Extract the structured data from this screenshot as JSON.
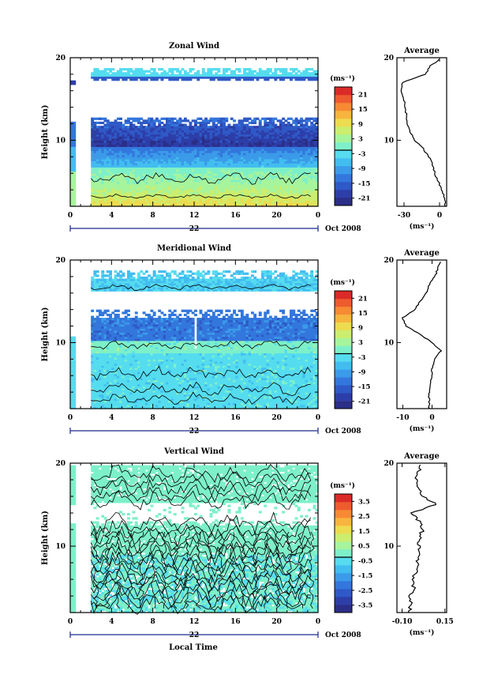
{
  "xlabel": "Local Time",
  "date_label": "Oct 2008",
  "day_label": "22",
  "colors": {
    "bar_colors": [
      "#2b2e86",
      "#2d3ea9",
      "#2f59c6",
      "#3377dd",
      "#3b9be9",
      "#42bdf0",
      "#55dcef",
      "#7df0c9",
      "#a6f49c",
      "#ccee6e",
      "#ecdc4e",
      "#f7b53d",
      "#f78a33",
      "#ef5b2e",
      "#dc2a28"
    ]
  },
  "chart_data": [
    {
      "type": "heatmap",
      "title": "Zonal Wind",
      "ylabel": "Height (km)",
      "unit": "(ms⁻¹)",
      "xlim": [
        0,
        24
      ],
      "ylim": [
        2,
        20
      ],
      "x_ticks": [
        "0",
        "4",
        "8",
        "12",
        "16",
        "20",
        "0"
      ],
      "y_ticks": [
        "10",
        "20"
      ],
      "colorbar_ticks": [
        "-21",
        "-15",
        "-9",
        "-3",
        "3",
        "9",
        "15",
        "21"
      ],
      "colorbar_range": [
        -24,
        24
      ],
      "average": {
        "title": "Average",
        "xlim": [
          -36,
          6
        ],
        "x_ticks": [
          "-30",
          "0"
        ],
        "xlabel": "(ms⁻¹)",
        "y_ticks": [
          "10",
          "20"
        ],
        "profile": [
          [
            5,
            2
          ],
          [
            4,
            3
          ],
          [
            2,
            4
          ],
          [
            -1,
            5
          ],
          [
            -4,
            6
          ],
          [
            -6,
            7
          ],
          [
            -9,
            8
          ],
          [
            -14,
            9
          ],
          [
            -21,
            10
          ],
          [
            -25,
            11
          ],
          [
            -27,
            12
          ],
          [
            -28,
            13
          ],
          [
            -29,
            14
          ],
          [
            -30,
            15
          ],
          [
            -33,
            16
          ],
          [
            -31,
            17
          ],
          [
            -12,
            18
          ],
          [
            -8,
            19
          ],
          [
            2,
            20
          ]
        ]
      }
    },
    {
      "type": "heatmap",
      "title": "Meridional Wind",
      "ylabel": "Height (km)",
      "unit": "(ms⁻¹)",
      "xlim": [
        0,
        24
      ],
      "ylim": [
        2,
        20
      ],
      "x_ticks": [
        "0",
        "4",
        "8",
        "12",
        "16",
        "20",
        "0"
      ],
      "y_ticks": [
        "10",
        "20"
      ],
      "colorbar_ticks": [
        "-21",
        "-15",
        "-9",
        "-3",
        "3",
        "9",
        "15",
        "21"
      ],
      "colorbar_range": [
        -24,
        24
      ],
      "average": {
        "title": "Average",
        "xlim": [
          -12,
          5
        ],
        "x_ticks": [
          "-10",
          "0"
        ],
        "xlabel": "(ms⁻¹)",
        "y_ticks": [
          "10",
          "20"
        ],
        "profile": [
          [
            -1,
            2
          ],
          [
            -1,
            3
          ],
          [
            -1,
            4
          ],
          [
            -0.5,
            5
          ],
          [
            0,
            6
          ],
          [
            0,
            7
          ],
          [
            1,
            8
          ],
          [
            3,
            9
          ],
          [
            0,
            10
          ],
          [
            -4,
            11
          ],
          [
            -9,
            12
          ],
          [
            -10,
            13
          ],
          [
            -6,
            14
          ],
          [
            -4,
            15
          ],
          [
            -2,
            16
          ],
          [
            -1,
            17
          ],
          [
            1,
            18
          ],
          [
            2,
            19
          ],
          [
            3,
            20
          ]
        ]
      }
    },
    {
      "type": "heatmap",
      "title": "Vertical Wind",
      "ylabel": "Height (km)",
      "unit": "(ms⁻¹)",
      "xlim": [
        0,
        24
      ],
      "ylim": [
        2,
        20
      ],
      "x_ticks": [
        "0",
        "4",
        "8",
        "12",
        "16",
        "20",
        "0"
      ],
      "y_ticks": [
        "10",
        "20"
      ],
      "colorbar_ticks": [
        "-3.5",
        "-2.5",
        "-1.5",
        "-0.5",
        "0.5",
        "1.5",
        "2.5",
        "3.5"
      ],
      "colorbar_range": [
        -4,
        4
      ],
      "average": {
        "title": "Average",
        "xlim": [
          -0.13,
          0.16
        ],
        "x_ticks": [
          "-0.10",
          "0.15"
        ],
        "xlabel": "(ms⁻¹)",
        "y_ticks": [
          "10",
          "20"
        ],
        "profile": [
          [
            -0.06,
            2
          ],
          [
            -0.05,
            3
          ],
          [
            -0.06,
            4
          ],
          [
            -0.03,
            5
          ],
          [
            -0.04,
            6
          ],
          [
            -0.02,
            7
          ],
          [
            -0.01,
            8
          ],
          [
            0.0,
            9
          ],
          [
            0.0,
            10
          ],
          [
            0.0,
            11
          ],
          [
            0.02,
            12
          ],
          [
            0.0,
            13
          ],
          [
            -0.05,
            14
          ],
          [
            0.1,
            15
          ],
          [
            0.02,
            16
          ],
          [
            0.0,
            17
          ],
          [
            -0.02,
            18
          ],
          [
            0.0,
            19
          ],
          [
            0.01,
            20
          ]
        ]
      }
    }
  ]
}
